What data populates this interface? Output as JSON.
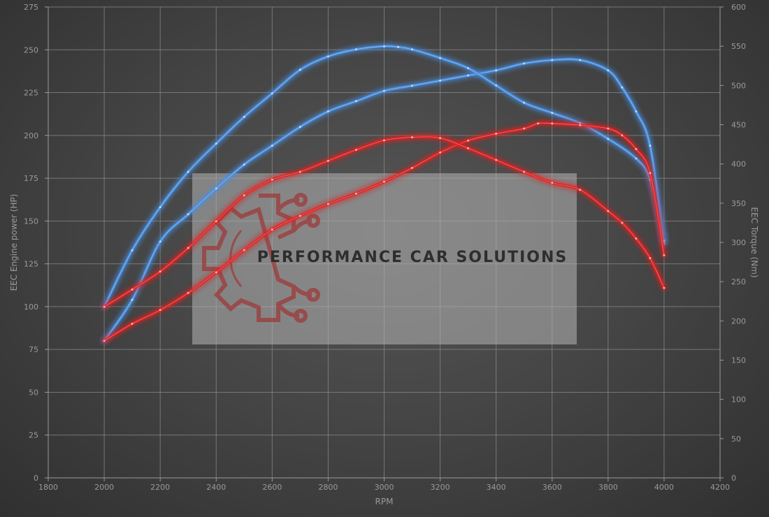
{
  "chart_data": {
    "type": "line",
    "xlabel": "RPM",
    "ylabel_left": "EEC Engine power (HP)",
    "ylabel_right": "EEC Torque (Nm)",
    "xlim": [
      1800,
      4200
    ],
    "ylim_left": [
      0,
      275
    ],
    "ylim_right": [
      0,
      600
    ],
    "x_ticks": [
      1800,
      2000,
      2200,
      2400,
      2600,
      2800,
      3000,
      3200,
      3400,
      3600,
      3800,
      4000,
      4200
    ],
    "y_ticks_left": [
      0,
      25,
      50,
      75,
      100,
      125,
      150,
      175,
      200,
      225,
      250,
      275
    ],
    "y_ticks_right": [
      0,
      50,
      100,
      150,
      200,
      250,
      300,
      350,
      400,
      450,
      500,
      550,
      600
    ],
    "grid": true,
    "colors": {
      "tuned": "#4a90e2",
      "stock": "#e02020"
    },
    "series": [
      {
        "axis": "left",
        "color": "#4a90e2",
        "x": [
          2000,
          2100,
          2200,
          2300,
          2400,
          2500,
          2600,
          2700,
          2800,
          2900,
          3000,
          3100,
          3200,
          3300,
          3400,
          3500,
          3600,
          3700,
          3800,
          3850,
          3900,
          3950,
          4000
        ],
        "y": [
          80,
          104,
          138,
          154,
          169,
          183,
          194,
          205,
          214,
          220,
          226,
          229,
          232,
          235,
          238,
          242,
          244,
          244,
          238,
          228,
          214,
          194,
          137
        ]
      },
      {
        "axis": "right",
        "color": "#4a90e2",
        "x": [
          2000,
          2100,
          2200,
          2300,
          2400,
          2500,
          2600,
          2700,
          2800,
          2900,
          3000,
          3050,
          3100,
          3200,
          3300,
          3400,
          3500,
          3600,
          3700,
          3800,
          3900,
          3950,
          4000
        ],
        "y": [
          218,
          290,
          345,
          390,
          426,
          460,
          490,
          520,
          537,
          546,
          550,
          549,
          546,
          535,
          522,
          500,
          478,
          465,
          452,
          432,
          407,
          380,
          302
        ]
      },
      {
        "axis": "left",
        "color": "#e02020",
        "x": [
          2000,
          2100,
          2200,
          2300,
          2400,
          2500,
          2600,
          2700,
          2800,
          2900,
          3000,
          3100,
          3200,
          3300,
          3400,
          3500,
          3550,
          3600,
          3700,
          3800,
          3850,
          3900,
          3950,
          4000
        ],
        "y": [
          80,
          90,
          98,
          108,
          120,
          133,
          145,
          153,
          160,
          166,
          173,
          181,
          190,
          197,
          201,
          204,
          207,
          207,
          206,
          204,
          200,
          192,
          178,
          130
        ]
      },
      {
        "axis": "right",
        "color": "#e02020",
        "x": [
          2000,
          2100,
          2200,
          2300,
          2400,
          2500,
          2600,
          2700,
          2800,
          2900,
          3000,
          3100,
          3200,
          3300,
          3400,
          3500,
          3600,
          3700,
          3800,
          3850,
          3900,
          3950,
          4000
        ],
        "y": [
          218,
          240,
          263,
          293,
          327,
          360,
          380,
          390,
          404,
          418,
          430,
          434,
          433,
          420,
          405,
          390,
          376,
          367,
          340,
          325,
          305,
          280,
          242
        ]
      }
    ]
  },
  "watermark": {
    "text": "PERFORMANCE CAR SOLUTIONS",
    "icon": "gear-circuit-logo-icon"
  }
}
